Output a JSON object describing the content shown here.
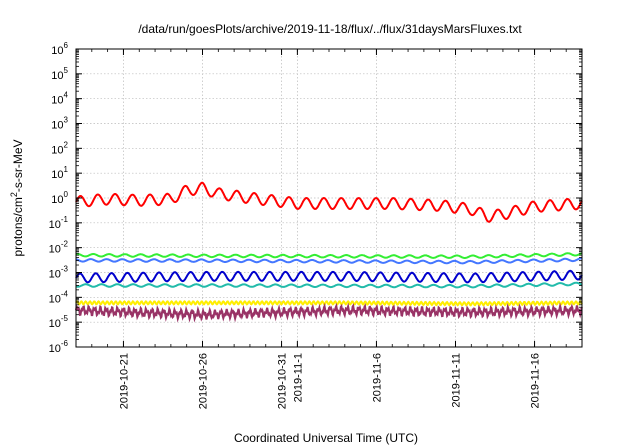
{
  "chart_data": {
    "type": "line",
    "title": "/data/run/goesPlots/archive/2019-11-18/flux/../flux/31daysMarsFluxes.txt",
    "xlabel": "Coordinated Universal Time (UTC)",
    "ylabel_base": "protons/cm",
    "ylabel_sup": "2",
    "ylabel_rest": "-s-sr-MeV",
    "y_scale": "log",
    "ylim": [
      1e-06,
      1000000.0
    ],
    "y_ticks": [
      {
        "value": 1e-06,
        "base": "10",
        "exp": "-6"
      },
      {
        "value": 1e-05,
        "base": "10",
        "exp": "-5"
      },
      {
        "value": 0.0001,
        "base": "10",
        "exp": "-4"
      },
      {
        "value": 0.001,
        "base": "10",
        "exp": "-3"
      },
      {
        "value": 0.01,
        "base": "10",
        "exp": "-2"
      },
      {
        "value": 0.1,
        "base": "10",
        "exp": "-1"
      },
      {
        "value": 1.0,
        "base": "10",
        "exp": "0"
      },
      {
        "value": 10.0,
        "base": "10",
        "exp": "1"
      },
      {
        "value": 100.0,
        "base": "10",
        "exp": "2"
      },
      {
        "value": 1000.0,
        "base": "10",
        "exp": "3"
      },
      {
        "value": 10000.0,
        "base": "10",
        "exp": "4"
      },
      {
        "value": 100000.0,
        "base": "10",
        "exp": "5"
      },
      {
        "value": 1000000.0,
        "base": "10",
        "exp": "6"
      }
    ],
    "xlim": [
      "2019-10-18",
      "2019-11-19"
    ],
    "x_ticks": [
      {
        "date": "2019-10-21",
        "label": "2019-10-21"
      },
      {
        "date": "2019-10-26",
        "label": "2019-10-26"
      },
      {
        "date": "2019-10-31",
        "label": "2019-10-31"
      },
      {
        "date": "2019-11-01",
        "label": "2019-11-1"
      },
      {
        "date": "2019-11-06",
        "label": "2019-11-6"
      },
      {
        "date": "2019-11-11",
        "label": "2019-11-11"
      },
      {
        "date": "2019-11-16",
        "label": "2019-11-16"
      }
    ],
    "grid": true,
    "series": [
      {
        "color": "#ff0000",
        "values": [
          {
            "date": "2019-10-18",
            "y": 0.7
          },
          {
            "date": "2019-10-20",
            "y": 0.9
          },
          {
            "date": "2019-10-22",
            "y": 0.8
          },
          {
            "date": "2019-10-24",
            "y": 0.9
          },
          {
            "date": "2019-10-25",
            "y": 2.0
          },
          {
            "date": "2019-10-26",
            "y": 2.5
          },
          {
            "date": "2019-10-27",
            "y": 1.5
          },
          {
            "date": "2019-10-29",
            "y": 1.0
          },
          {
            "date": "2019-11-01",
            "y": 0.6
          },
          {
            "date": "2019-11-04",
            "y": 0.6
          },
          {
            "date": "2019-11-07",
            "y": 0.6
          },
          {
            "date": "2019-11-10",
            "y": 0.5
          },
          {
            "date": "2019-11-12",
            "y": 0.35
          },
          {
            "date": "2019-11-13",
            "y": 0.18
          },
          {
            "date": "2019-11-14",
            "y": 0.22
          },
          {
            "date": "2019-11-16",
            "y": 0.45
          },
          {
            "date": "2019-11-19",
            "y": 0.6
          }
        ]
      },
      {
        "color": "#33ee33",
        "values": [
          {
            "date": "2019-10-18",
            "y": 0.005
          },
          {
            "date": "2019-10-26",
            "y": 0.0047
          },
          {
            "date": "2019-11-04",
            "y": 0.0045
          },
          {
            "date": "2019-11-12",
            "y": 0.0043
          },
          {
            "date": "2019-11-19",
            "y": 0.0055
          }
        ]
      },
      {
        "color": "#4477ff",
        "values": [
          {
            "date": "2019-10-18",
            "y": 0.0031
          },
          {
            "date": "2019-10-26",
            "y": 0.003
          },
          {
            "date": "2019-11-04",
            "y": 0.0028
          },
          {
            "date": "2019-11-12",
            "y": 0.0026
          },
          {
            "date": "2019-11-19",
            "y": 0.0033
          }
        ]
      },
      {
        "color": "#0000cc",
        "values": [
          {
            "date": "2019-10-18",
            "y": 0.0006
          },
          {
            "date": "2019-10-26",
            "y": 0.0007
          },
          {
            "date": "2019-11-04",
            "y": 0.0007
          },
          {
            "date": "2019-11-12",
            "y": 0.0006
          },
          {
            "date": "2019-11-19",
            "y": 0.0008
          }
        ]
      },
      {
        "color": "#22bbaa",
        "values": [
          {
            "date": "2019-10-18",
            "y": 0.0003
          },
          {
            "date": "2019-10-26",
            "y": 0.0003
          },
          {
            "date": "2019-11-04",
            "y": 0.00029
          },
          {
            "date": "2019-11-12",
            "y": 0.00028
          },
          {
            "date": "2019-11-19",
            "y": 0.00035
          }
        ]
      },
      {
        "color": "#ffee00",
        "values": [
          {
            "date": "2019-10-18",
            "y": 6e-05
          },
          {
            "date": "2019-10-26",
            "y": 6e-05
          },
          {
            "date": "2019-11-04",
            "y": 6e-05
          },
          {
            "date": "2019-11-12",
            "y": 5.5e-05
          },
          {
            "date": "2019-11-19",
            "y": 6e-05
          }
        ]
      },
      {
        "color": "#993366",
        "values": [
          {
            "date": "2019-10-18",
            "y": 3e-05
          },
          {
            "date": "2019-10-26",
            "y": 2e-05
          },
          {
            "date": "2019-11-04",
            "y": 3e-05
          },
          {
            "date": "2019-11-12",
            "y": 2.5e-05
          },
          {
            "date": "2019-11-19",
            "y": 3e-05
          }
        ]
      }
    ]
  }
}
